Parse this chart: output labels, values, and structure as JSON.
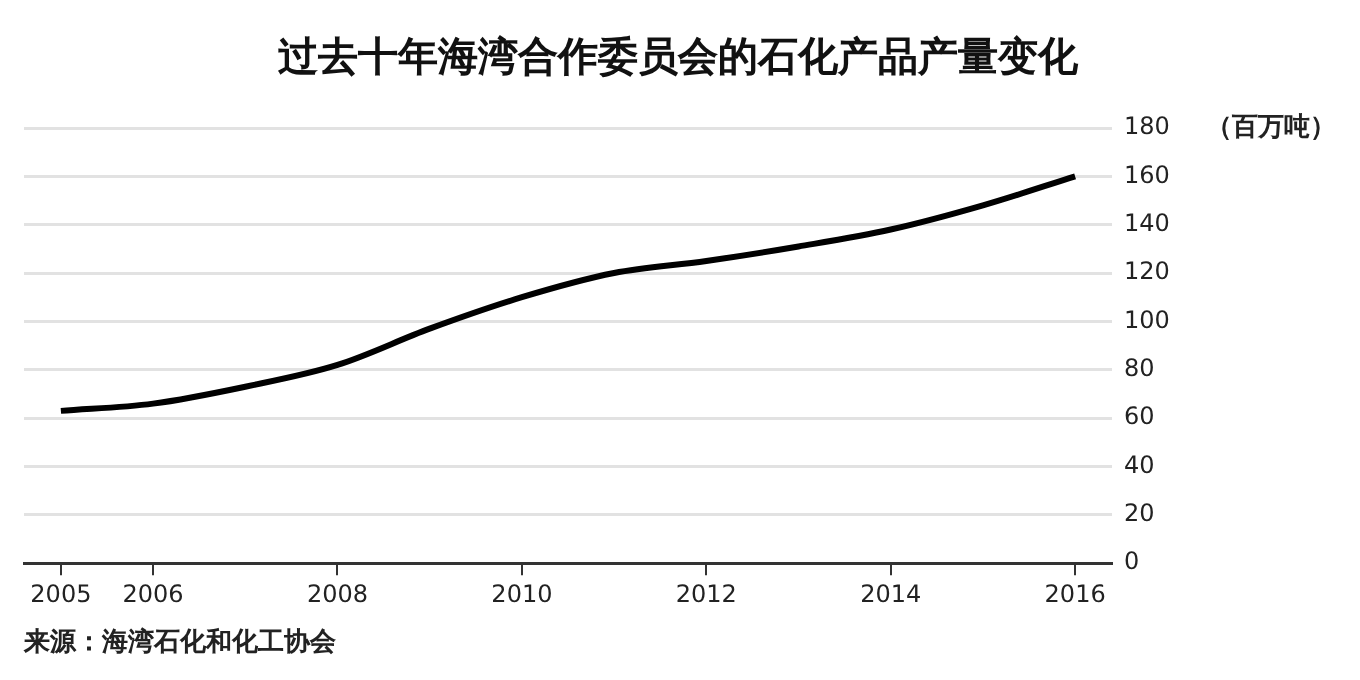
{
  "chart_data": {
    "type": "line",
    "title": "过去十年海湾合作委员会的石化产品产量变化",
    "ylabel": "（百万吨）",
    "annotations": [
      "来源：海湾石化和化工协会"
    ],
    "x": [
      2005,
      2006,
      2007,
      2008,
      2009,
      2010,
      2011,
      2012,
      2013,
      2014,
      2015,
      2016
    ],
    "series": [
      {
        "color": "#000000",
        "values": [
          63,
          66,
          73,
          82,
          97,
          110,
          120,
          125,
          131,
          138,
          148,
          160
        ]
      }
    ],
    "xlim": [
      2004.6,
      2016.4
    ],
    "xticks": [
      2005,
      2006,
      2008,
      2010,
      2012,
      2014,
      2016
    ],
    "ylim": [
      0,
      180
    ],
    "yticks": [
      0,
      20,
      40,
      60,
      80,
      100,
      120,
      140,
      160,
      180
    ],
    "grid": "y",
    "legend": false,
    "marker": "none",
    "line_style": "solid"
  }
}
